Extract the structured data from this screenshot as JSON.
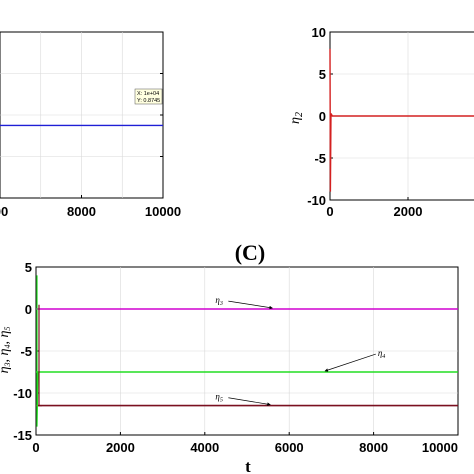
{
  "chart_data": [
    {
      "panel": "A",
      "type": "line",
      "x_ticks": [
        0,
        8000,
        10000
      ],
      "x_tick_labels": [
        "00",
        "8000",
        "10000"
      ],
      "xlim": [
        6000,
        10000
      ],
      "ylim": [
        0,
        2
      ],
      "series": [
        {
          "color": "#1f1fd6",
          "x": [
            6000,
            10000
          ],
          "y": [
            0.8745,
            0.8745
          ]
        }
      ],
      "datatip": {
        "x_label": "X: 1e+04",
        "y_label": "Y: 0.8745"
      }
    },
    {
      "panel": "B",
      "type": "line",
      "ylabel": "η2",
      "ylim": [
        -10,
        10
      ],
      "y_ticks": [
        10,
        5,
        0,
        -5,
        -10
      ],
      "x_ticks": [
        0,
        2000
      ],
      "series": [
        {
          "color": "#d42020",
          "x": [
            0,
            10,
            25,
            60,
            4000
          ],
          "y": [
            8,
            -9,
            0.3,
            0,
            0
          ]
        }
      ]
    },
    {
      "panel": "C",
      "type": "line",
      "title": "(C)",
      "xlabel": "t",
      "ylabel": "η3, η4, η5",
      "xlim": [
        0,
        10000
      ],
      "ylim": [
        -15,
        5
      ],
      "x_ticks": [
        0,
        2000,
        4000,
        6000,
        8000,
        10000
      ],
      "y_ticks": [
        5,
        0,
        -5,
        -10,
        -15
      ],
      "series": [
        {
          "color": "#d000d0",
          "x": [
            0,
            10000
          ],
          "y": [
            0,
            0
          ]
        },
        {
          "color": "#22dd22",
          "x": [
            0,
            10000
          ],
          "y": [
            -7.5,
            -7.5
          ]
        },
        {
          "color": "#7a1020",
          "x": [
            0,
            10000
          ],
          "y": [
            -11.5,
            -11.5
          ]
        }
      ],
      "annotations": [
        {
          "text": "η3",
          "x": 4250,
          "y": 0.7,
          "arrow_to": [
            5600,
            0
          ]
        },
        {
          "text": "η4",
          "x": 8100,
          "y": -5.6,
          "arrow_to": [
            6850,
            -7.5
          ]
        },
        {
          "text": "η5",
          "x": 4250,
          "y": -10.8,
          "arrow_to": [
            5550,
            -11.5
          ]
        }
      ]
    }
  ]
}
